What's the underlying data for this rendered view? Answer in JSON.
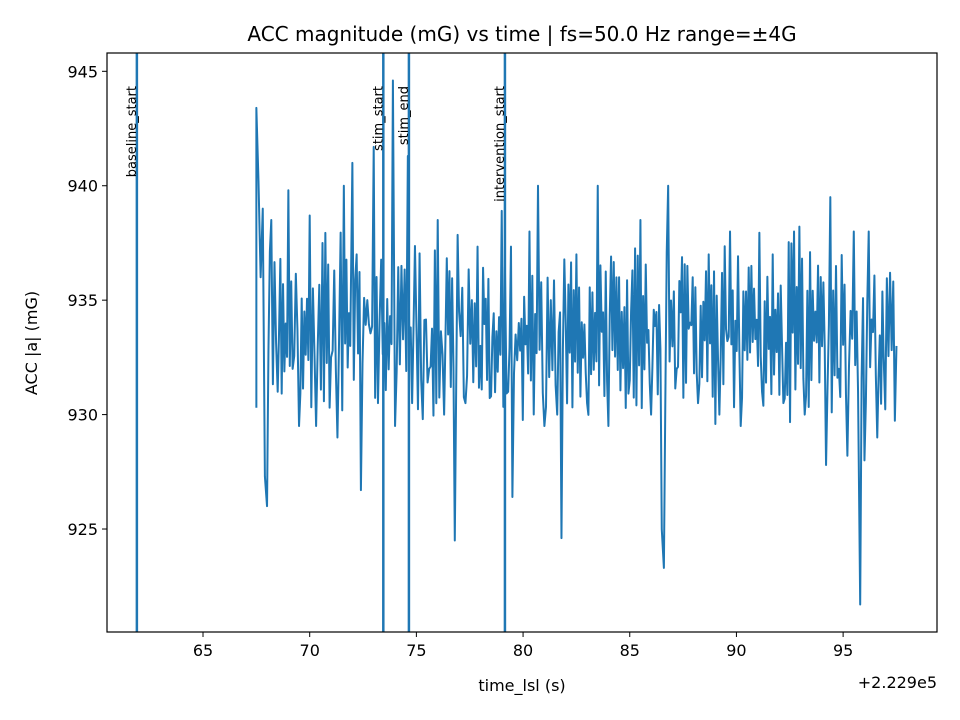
{
  "chart_data": {
    "type": "line",
    "title": "ACC magnitude (mG) vs time  |  fs=50.0 Hz  range=±4G",
    "xlabel": "time_lsl (s)",
    "ylabel": "ACC |a| (mG)",
    "x_offset_label": "+2.229e5",
    "xlim": [
      60.5,
      99.4
    ],
    "ylim": [
      920.5,
      945.8
    ],
    "x_ticks": [
      65,
      70,
      75,
      80,
      85,
      90,
      95
    ],
    "x_tick_labels": [
      "65",
      "70",
      "75",
      "80",
      "85",
      "90",
      "95"
    ],
    "y_ticks": [
      925,
      930,
      935,
      940,
      945
    ],
    "y_tick_labels": [
      "925",
      "930",
      "935",
      "940",
      "945"
    ],
    "grid": false,
    "color": "#1f77b4",
    "events": [
      {
        "label": "baseline_start",
        "x": 61.9
      },
      {
        "label": "stim_start",
        "x": 73.45
      },
      {
        "label": "stim_end",
        "x": 74.65
      },
      {
        "label": "intervention_start",
        "x": 79.15
      }
    ],
    "series": [
      {
        "x_start": 67.5,
        "x_end": 97.5,
        "anchors": [
          [
            67.5,
            930.3
          ],
          [
            67.5,
            943.4
          ],
          [
            67.6,
            940.2
          ],
          [
            67.7,
            936.0
          ],
          [
            67.8,
            939.0
          ],
          [
            67.9,
            927.3
          ],
          [
            68.0,
            926.0
          ],
          [
            68.2,
            938.5
          ],
          [
            68.5,
            931.0
          ],
          [
            69.0,
            939.8
          ],
          [
            69.2,
            932.0
          ],
          [
            69.5,
            929.5
          ],
          [
            70.0,
            938.7
          ],
          [
            70.3,
            929.5
          ],
          [
            70.6,
            937.5
          ],
          [
            71.0,
            932.5
          ],
          [
            71.3,
            929.0
          ],
          [
            71.6,
            940.0
          ],
          [
            71.9,
            933.0
          ],
          [
            72.0,
            941.0
          ],
          [
            72.2,
            937.0
          ],
          [
            72.4,
            926.7
          ],
          [
            72.7,
            935.0
          ],
          [
            73.0,
            941.7
          ],
          [
            73.2,
            930.5
          ],
          [
            73.5,
            934.0
          ],
          [
            73.9,
            944.6
          ],
          [
            74.0,
            929.5
          ],
          [
            74.3,
            936.5
          ],
          [
            74.6,
            941.3
          ],
          [
            74.8,
            930.5
          ],
          [
            75.0,
            934.0
          ],
          [
            75.3,
            929.8
          ],
          [
            75.6,
            932.0
          ],
          [
            76.0,
            938.5
          ],
          [
            76.3,
            930.0
          ],
          [
            76.8,
            924.5
          ],
          [
            77.0,
            934.5
          ],
          [
            77.3,
            930.5
          ],
          [
            77.6,
            935.0
          ],
          [
            78.0,
            933.0
          ],
          [
            78.5,
            930.8
          ],
          [
            79.0,
            938.9
          ],
          [
            79.3,
            931.0
          ],
          [
            79.5,
            926.4
          ],
          [
            79.8,
            934.0
          ],
          [
            80.3,
            938.0
          ],
          [
            80.7,
            940.0
          ],
          [
            81.0,
            929.5
          ],
          [
            81.3,
            935.0
          ],
          [
            81.6,
            930.0
          ],
          [
            81.8,
            924.6
          ],
          [
            82.0,
            934.0
          ],
          [
            82.5,
            937.0
          ],
          [
            83.0,
            930.5
          ],
          [
            83.5,
            940.0
          ],
          [
            84.0,
            929.5
          ],
          [
            84.5,
            936.0
          ],
          [
            85.0,
            931.5
          ],
          [
            85.5,
            938.5
          ],
          [
            86.0,
            930.0
          ],
          [
            86.5,
            925.0
          ],
          [
            86.6,
            923.3
          ],
          [
            86.8,
            940.0
          ],
          [
            87.2,
            932.0
          ],
          [
            87.7,
            936.5
          ],
          [
            88.2,
            930.5
          ],
          [
            88.7,
            937.0
          ],
          [
            89.2,
            930.0
          ],
          [
            89.7,
            938.0
          ],
          [
            90.2,
            929.5
          ],
          [
            90.7,
            936.5
          ],
          [
            91.2,
            931.0
          ],
          [
            91.7,
            937.0
          ],
          [
            92.2,
            930.5
          ],
          [
            92.7,
            938.0
          ],
          [
            93.2,
            930.0
          ],
          [
            93.7,
            934.5
          ],
          [
            94.2,
            927.8
          ],
          [
            94.4,
            939.5
          ],
          [
            94.8,
            932.0
          ],
          [
            95.2,
            928.2
          ],
          [
            95.5,
            938.0
          ],
          [
            95.7,
            931.0
          ],
          [
            95.8,
            921.7
          ],
          [
            96.0,
            928.0
          ],
          [
            96.2,
            938.0
          ],
          [
            96.6,
            929.0
          ],
          [
            96.9,
            932.5
          ],
          [
            97.2,
            936.2
          ],
          [
            97.5,
            933.0
          ]
        ]
      }
    ]
  }
}
